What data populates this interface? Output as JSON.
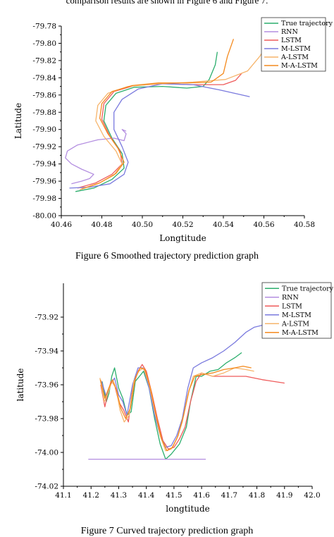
{
  "header_fragment": "comparison results are shown in Figure 6 and Figure 7.",
  "colors": {
    "True trajectory": "#2cae6d",
    "RNN": "#b38ee0",
    "LSTM": "#ef5b5b",
    "M-LSTM": "#7a7ade",
    "A-LSTM": "#f6b46b",
    "M-A-LSTM": "#f48a1e"
  },
  "figures": [
    {
      "caption": "Figure 6 Smoothed trajectory prediction graph"
    },
    {
      "caption": "Figure 7 Curved trajectory prediction graph"
    }
  ],
  "chart_data": [
    {
      "type": "line",
      "xlabel": "Longtitude",
      "ylabel": "Latitude",
      "xlim": [
        40.46,
        40.58
      ],
      "ylim": [
        -80.0,
        -79.78
      ],
      "xticks": [
        40.46,
        40.48,
        40.5,
        40.52,
        40.54,
        40.56,
        40.58
      ],
      "xtick_labels": [
        "40.46",
        "40.48",
        "40.50",
        "40.52",
        "40.54",
        "40.56",
        "40.58"
      ],
      "yticks": [
        -79.78,
        -79.8,
        -79.82,
        -79.84,
        -79.86,
        -79.88,
        -79.9,
        -79.92,
        -79.94,
        -79.96,
        -79.98,
        -80.0
      ],
      "ytick_labels": [
        "-79.78",
        "-79.80",
        "-79.82",
        "-79.84",
        "-79.86",
        "-79.88",
        "-79.90",
        "-79.92",
        "-79.94",
        "-79.96",
        "-79.98",
        "-80.00"
      ],
      "legend": "top-right",
      "series": [
        {
          "name": "True trajectory",
          "x": [
            40.467,
            40.476,
            40.485,
            40.491,
            40.49,
            40.485,
            40.481,
            40.482,
            40.487,
            40.496,
            40.51,
            40.522,
            40.53,
            40.533,
            40.536,
            40.537
          ],
          "y": [
            -79.972,
            -79.968,
            -79.958,
            -79.945,
            -79.928,
            -79.91,
            -79.89,
            -79.872,
            -79.858,
            -79.851,
            -79.85,
            -79.852,
            -79.85,
            -79.842,
            -79.825,
            -79.81
          ]
        },
        {
          "name": "RNN",
          "x": [
            40.465,
            40.47,
            40.474,
            40.476,
            40.47,
            40.465,
            40.462,
            40.463,
            40.468,
            40.478,
            40.486,
            40.491,
            40.492,
            40.49,
            40.492
          ],
          "y": [
            -79.963,
            -79.96,
            -79.957,
            -79.952,
            -79.946,
            -79.94,
            -79.933,
            -79.925,
            -79.918,
            -79.912,
            -79.91,
            -79.913,
            -79.905,
            -79.9,
            -79.902
          ]
        },
        {
          "name": "LSTM",
          "x": [
            40.468,
            40.477,
            40.485,
            40.49,
            40.489,
            40.484,
            40.48,
            40.481,
            40.486,
            40.496,
            40.51,
            40.525,
            40.54,
            40.546,
            40.549
          ],
          "y": [
            -79.968,
            -79.962,
            -79.952,
            -79.94,
            -79.925,
            -79.908,
            -79.888,
            -79.87,
            -79.856,
            -79.849,
            -79.847,
            -79.848,
            -79.848,
            -79.843,
            -79.835
          ]
        },
        {
          "name": "M-LSTM",
          "x": [
            40.464,
            40.474,
            40.484,
            40.491,
            40.493,
            40.49,
            40.486,
            40.486,
            40.49,
            40.498,
            40.51,
            40.525,
            40.538,
            40.553
          ],
          "y": [
            -79.968,
            -79.967,
            -79.963,
            -79.952,
            -79.938,
            -79.92,
            -79.9,
            -79.88,
            -79.865,
            -79.853,
            -79.847,
            -79.848,
            -79.854,
            -79.862
          ]
        },
        {
          "name": "A-LSTM",
          "x": [
            40.469,
            40.478,
            40.486,
            40.49,
            40.487,
            40.481,
            40.477,
            40.478,
            40.483,
            40.493,
            40.508,
            40.525,
            40.541,
            40.552,
            40.558,
            40.562
          ],
          "y": [
            -79.97,
            -79.963,
            -79.953,
            -79.94,
            -79.925,
            -79.908,
            -79.89,
            -79.872,
            -79.858,
            -79.85,
            -79.847,
            -79.845,
            -79.842,
            -79.832,
            -79.815,
            -79.8
          ]
        },
        {
          "name": "M-A-LSTM",
          "x": [
            40.47,
            40.479,
            40.487,
            40.491,
            40.488,
            40.483,
            40.479,
            40.48,
            40.485,
            40.495,
            40.508,
            40.522,
            40.534,
            40.54,
            40.542,
            40.545
          ],
          "y": [
            -79.969,
            -79.962,
            -79.951,
            -79.938,
            -79.922,
            -79.905,
            -79.887,
            -79.87,
            -79.856,
            -79.849,
            -79.846,
            -79.846,
            -79.845,
            -79.835,
            -79.815,
            -79.795
          ]
        }
      ]
    },
    {
      "type": "line",
      "xlabel": "longtitude",
      "ylabel": "latitude",
      "xlim": [
        41.1,
        42.0
      ],
      "ylim": [
        -74.02,
        -73.9
      ],
      "xticks": [
        41.1,
        41.2,
        41.3,
        41.4,
        41.5,
        41.6,
        41.7,
        41.8,
        41.9,
        42.0
      ],
      "xtick_labels": [
        "41.1",
        "41.2",
        "41.3",
        "41.4",
        "41.5",
        "41.6",
        "41.7",
        "41.8",
        "41.9",
        "42.0"
      ],
      "yticks": [
        -73.92,
        -73.94,
        -73.96,
        -73.98,
        -74.0,
        -74.02
      ],
      "ytick_labels": [
        "-73.92",
        "-73.94",
        "-73.96",
        "-73.98",
        "-74.00",
        "-74.02"
      ],
      "legend": "top-right",
      "series": [
        {
          "name": "True trajectory",
          "x": [
            41.24,
            41.255,
            41.265,
            41.275,
            41.285,
            41.3,
            41.315,
            41.33,
            41.345,
            41.36,
            41.375,
            41.39,
            41.41,
            41.43,
            41.45,
            41.47,
            41.49,
            41.52,
            41.545,
            41.56,
            41.58,
            41.6,
            41.63,
            41.66,
            41.69,
            41.72,
            41.745
          ],
          "y": [
            -73.958,
            -73.97,
            -73.965,
            -73.955,
            -73.95,
            -73.962,
            -73.968,
            -73.978,
            -73.976,
            -73.958,
            -73.955,
            -73.952,
            -73.962,
            -73.98,
            -73.995,
            -74.004,
            -74.001,
            -73.995,
            -73.985,
            -73.97,
            -73.955,
            -73.955,
            -73.952,
            -73.951,
            -73.947,
            -73.944,
            -73.941
          ]
        },
        {
          "name": "RNN",
          "x": [
            41.19,
            41.615
          ],
          "y": [
            -74.004,
            -74.004
          ]
        },
        {
          "name": "LSTM",
          "x": [
            41.235,
            41.25,
            41.262,
            41.272,
            41.285,
            41.3,
            41.318,
            41.335,
            41.35,
            41.37,
            41.385,
            41.4,
            41.42,
            41.44,
            41.46,
            41.48,
            41.5,
            41.52,
            41.54,
            41.56,
            41.58,
            41.6,
            41.64,
            41.7,
            41.76,
            41.82,
            41.9
          ],
          "y": [
            -73.96,
            -73.973,
            -73.964,
            -73.958,
            -73.96,
            -73.97,
            -73.975,
            -73.982,
            -73.962,
            -73.952,
            -73.948,
            -73.952,
            -73.965,
            -73.98,
            -73.993,
            -73.998,
            -73.997,
            -73.992,
            -73.985,
            -73.97,
            -73.958,
            -73.953,
            -73.955,
            -73.955,
            -73.955,
            -73.957,
            -73.959
          ]
        },
        {
          "name": "M-LSTM",
          "x": [
            41.238,
            41.255,
            41.27,
            41.285,
            41.3,
            41.315,
            41.33,
            41.35,
            41.37,
            41.39,
            41.41,
            41.43,
            41.45,
            41.47,
            41.49,
            41.51,
            41.53,
            41.55,
            41.57,
            41.6,
            41.64,
            41.68,
            41.72,
            41.76,
            41.79,
            41.815,
            41.83
          ],
          "y": [
            -73.958,
            -73.967,
            -73.96,
            -73.956,
            -73.966,
            -73.97,
            -73.978,
            -73.96,
            -73.95,
            -73.95,
            -73.962,
            -73.978,
            -73.99,
            -73.997,
            -73.996,
            -73.99,
            -73.98,
            -73.962,
            -73.95,
            -73.947,
            -73.944,
            -73.94,
            -73.935,
            -73.929,
            -73.926,
            -73.925,
            -73.924
          ]
        },
        {
          "name": "A-LSTM",
          "x": [
            41.232,
            41.248,
            41.262,
            41.275,
            41.29,
            41.305,
            41.32,
            41.338,
            41.355,
            41.372,
            41.39,
            41.41,
            41.43,
            41.45,
            41.47,
            41.49,
            41.51,
            41.53,
            41.55,
            41.57,
            41.6,
            41.64,
            41.68,
            41.72,
            41.76,
            41.79
          ],
          "y": [
            -73.956,
            -73.97,
            -73.965,
            -73.958,
            -73.962,
            -73.975,
            -73.982,
            -73.978,
            -73.958,
            -73.952,
            -73.95,
            -73.96,
            -73.975,
            -73.99,
            -73.999,
            -73.998,
            -73.992,
            -73.982,
            -73.966,
            -73.955,
            -73.953,
            -73.955,
            -73.953,
            -73.95,
            -73.951,
            -73.952
          ]
        },
        {
          "name": "M-A-LSTM",
          "x": [
            41.234,
            41.25,
            41.264,
            41.278,
            41.292,
            41.308,
            41.325,
            41.342,
            41.36,
            41.378,
            41.395,
            41.415,
            41.435,
            41.455,
            41.475,
            41.495,
            41.515,
            41.535,
            41.555,
            41.575,
            41.6,
            41.64,
            41.68,
            41.72,
            41.75,
            41.78
          ],
          "y": [
            -73.957,
            -73.968,
            -73.962,
            -73.957,
            -73.963,
            -73.974,
            -73.98,
            -73.974,
            -73.956,
            -73.95,
            -73.951,
            -73.962,
            -73.978,
            -73.992,
            -73.999,
            -73.997,
            -73.99,
            -73.978,
            -73.963,
            -73.955,
            -73.954,
            -73.953,
            -73.951,
            -73.95,
            -73.949,
            -73.95
          ]
        }
      ]
    }
  ]
}
